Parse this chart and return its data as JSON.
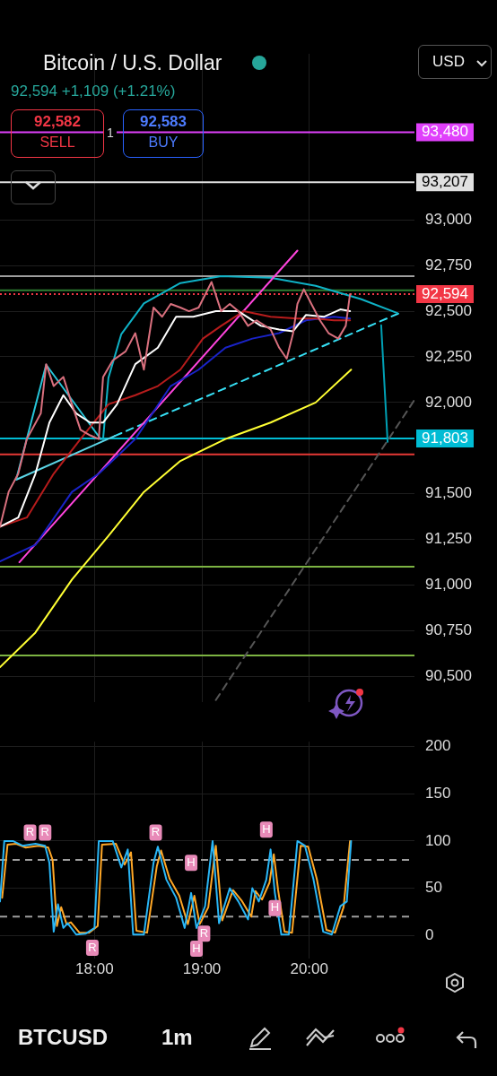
{
  "chart_data": [
    {
      "type": "line",
      "title": "Bitcoin / U.S. Dollar",
      "subtitle": "92,594 +1,109 (+1.21%)",
      "annotations": [
        "92,582",
        "SELL",
        "1",
        "92,583",
        "BUY",
        "USD"
      ],
      "xlim": [
        17.12,
        20.98
      ],
      "xticks": [
        {
          "value": 18,
          "label": null
        },
        {
          "value": 19,
          "label": null
        },
        {
          "value": 20,
          "label": null
        }
      ],
      "ylim": [
        90360,
        93910
      ],
      "yticks": [
        {
          "value": 90500,
          "label": "90,500"
        },
        {
          "value": 90750,
          "label": "90,750"
        },
        {
          "value": 91000,
          "label": "91,000"
        },
        {
          "value": 91250,
          "label": "91,250"
        },
        {
          "value": 91500,
          "label": "91,500"
        },
        {
          "value": 92000,
          "label": "92,000"
        },
        {
          "value": 92250,
          "label": "92,250"
        },
        {
          "value": 92500,
          "label": "92,500"
        },
        {
          "value": 92750,
          "label": "92,750"
        },
        {
          "value": 93000,
          "label": "93,000"
        }
      ],
      "tick_labels": "y",
      "grid": true,
      "marker": "none",
      "line_style": "solid",
      "legend": false,
      "series": [
        {
          "color": "#d9707e",
          "x": [
            17.12,
            17.2,
            17.29,
            17.37,
            17.5,
            17.55,
            17.62,
            17.71,
            17.79,
            17.87,
            17.96,
            18.04,
            18.08,
            18.17,
            18.29,
            18.38,
            18.46,
            18.55,
            18.63,
            18.71,
            18.8,
            18.88,
            18.97,
            19.09,
            19.18,
            19.26,
            19.34,
            19.43,
            19.51,
            19.64,
            19.72,
            19.79,
            19.85,
            19.89,
            19.95,
            20.02,
            20.1,
            20.18,
            20.27,
            20.34,
            20.38
          ],
          "values": [
            91320,
            91510,
            91610,
            91800,
            91940,
            92210,
            92090,
            92140,
            91990,
            91850,
            91820,
            91800,
            92140,
            92230,
            92280,
            92380,
            92180,
            92520,
            92470,
            92540,
            92520,
            92500,
            92520,
            92660,
            92500,
            92540,
            92500,
            92420,
            92450,
            92400,
            92300,
            92240,
            92380,
            92540,
            92620,
            92540,
            92450,
            92380,
            92350,
            92420,
            92594
          ]
        },
        {
          "color": "#ffffff",
          "x": [
            17.12,
            17.29,
            17.45,
            17.58,
            17.71,
            17.83,
            17.96,
            18.08,
            18.21,
            18.38,
            18.59,
            18.76,
            18.92,
            19.13,
            19.34,
            19.55,
            19.72,
            19.85,
            19.97,
            20.14,
            20.29,
            20.38
          ],
          "values": [
            91320,
            91370,
            91610,
            91890,
            92040,
            91940,
            91890,
            91890,
            91990,
            92210,
            92300,
            92470,
            92470,
            92500,
            92500,
            92420,
            92400,
            92390,
            92480,
            92470,
            92510,
            92500
          ]
        },
        {
          "color": "#b71c1c",
          "x": [
            17.12,
            17.37,
            17.62,
            17.87,
            18.13,
            18.38,
            18.59,
            18.8,
            19.01,
            19.18,
            19.39,
            19.64,
            19.89,
            20.06,
            20.23,
            20.38
          ],
          "values": [
            91320,
            91370,
            91610,
            91800,
            91990,
            92040,
            92090,
            92180,
            92350,
            92420,
            92500,
            92470,
            92460,
            92460,
            92450,
            92450
          ]
        },
        {
          "color": "#1a23c8",
          "x": [
            17.12,
            17.45,
            17.79,
            18.04,
            18.38,
            18.71,
            18.97,
            19.22,
            19.47,
            19.72,
            19.97,
            20.23,
            20.38
          ],
          "values": [
            91130,
            91220,
            91510,
            91610,
            91800,
            92090,
            92180,
            92300,
            92350,
            92380,
            92450,
            92470,
            92460
          ]
        },
        {
          "color": "#ffff33",
          "x": [
            17.12,
            17.45,
            17.79,
            18.13,
            18.46,
            18.8,
            19.22,
            19.64,
            20.06,
            20.39
          ],
          "values": [
            90550,
            90740,
            91030,
            91270,
            91510,
            91680,
            91800,
            91890,
            92000,
            92180
          ]
        },
        {
          "color": "#555555",
          "line_style": "dashed",
          "x": [
            19.13,
            20.98
          ],
          "values": [
            90370,
            92014
          ]
        },
        {
          "color": "#ff44dd",
          "x": [
            17.3,
            19.89
          ],
          "values": [
            91125,
            92832
          ]
        },
        {
          "color": "#26c6da",
          "x": [
            17.27,
            17.55,
            18.06
          ],
          "values": [
            91577,
            92207,
            91798
          ]
        },
        {
          "color": "#5ad4e6",
          "x": [
            17.27,
            18.19
          ],
          "values": [
            91577,
            91817
          ]
        },
        {
          "color": "#0fb2c6",
          "x": [
            18.08,
            18.13,
            18.25,
            18.46,
            18.8,
            19.18,
            19.64,
            20.06,
            20.48,
            20.82
          ],
          "values": [
            91798,
            92135,
            92375,
            92543,
            92654,
            92692,
            92683,
            92639,
            92567,
            92490
          ]
        },
        {
          "color": "#36e0f5",
          "line_style": "dashed",
          "x": [
            18.19,
            20.86
          ],
          "values": [
            91817,
            92495
          ]
        },
        {
          "color": "#00a0b4",
          "x": [
            20.67,
            20.73
          ],
          "values": [
            92423,
            91784
          ]
        }
      ],
      "ref_lines": [
        {
          "axis": "y",
          "value": 93480,
          "label": "93,480",
          "color": "#e040fb",
          "line_style": "solid"
        },
        {
          "axis": "y",
          "value": 93207,
          "label": "93,207",
          "color": "#e0e0e0",
          "line_style": "solid"
        },
        {
          "axis": "y",
          "value": 92692,
          "label": null,
          "color": "#9e9e9e",
          "line_style": "solid"
        },
        {
          "axis": "y",
          "value": 92615,
          "label": null,
          "color": "#2e7d32",
          "line_style": "solid"
        },
        {
          "axis": "y",
          "value": 92594,
          "label": "92,594",
          "color": "#f23645",
          "line_style": "dotted"
        },
        {
          "axis": "y",
          "value": 91803,
          "label": "91,803",
          "color": "#00bcd4",
          "line_style": "solid"
        },
        {
          "axis": "y",
          "value": 91716,
          "label": null,
          "color": "#e53935",
          "line_style": "solid"
        },
        {
          "axis": "y",
          "value": 91101,
          "label": null,
          "color": "#7cb342",
          "line_style": "solid"
        },
        {
          "axis": "y",
          "value": 90615,
          "label": null,
          "color": "#7cb342",
          "line_style": "solid"
        }
      ]
    },
    {
      "type": "line",
      "annotations": [
        {
          "text": "R",
          "x": 17.4,
          "y": 109
        },
        {
          "text": "R",
          "x": 17.54,
          "y": 109
        },
        {
          "text": "R",
          "x": 17.98,
          "y": -13
        },
        {
          "text": "R",
          "x": 18.57,
          "y": 109
        },
        {
          "text": "H",
          "x": 18.9,
          "y": 77
        },
        {
          "text": "R",
          "x": 19.02,
          "y": 2
        },
        {
          "text": "H",
          "x": 18.95,
          "y": -14
        },
        {
          "text": "H",
          "x": 19.6,
          "y": 112
        },
        {
          "text": "H",
          "x": 19.68,
          "y": 29
        },
        "BTCUSD",
        "1m"
      ],
      "xlim": [
        17.12,
        20.98
      ],
      "xticks": [
        {
          "value": 18,
          "label": "18:00"
        },
        {
          "value": 19,
          "label": "19:00"
        },
        {
          "value": 20,
          "label": "20:00"
        }
      ],
      "ylim": [
        -24,
        205
      ],
      "yticks": [
        0,
        50,
        100,
        150,
        200
      ],
      "grid": true,
      "marker": "none",
      "line_style": "solid",
      "legend": false,
      "series": [
        {
          "color": "#29b6f6",
          "x": [
            17.12,
            17.16,
            17.24,
            17.33,
            17.45,
            17.54,
            17.58,
            17.62,
            17.66,
            17.71,
            17.75,
            17.83,
            17.92,
            18.0,
            18.04,
            18.17,
            18.25,
            18.31,
            18.36,
            18.46,
            18.55,
            18.59,
            18.67,
            18.76,
            18.84,
            18.9,
            18.95,
            19.03,
            19.1,
            19.16,
            19.26,
            19.34,
            19.43,
            19.47,
            19.53,
            19.6,
            19.64,
            19.68,
            19.74,
            19.81,
            19.89,
            19.96,
            20.04,
            20.13,
            20.21,
            20.29,
            20.35,
            20.39
          ],
          "values": [
            36,
            100,
            100,
            95,
            97,
            95,
            77,
            4,
            33,
            8,
            13,
            1,
            2,
            8,
            100,
            100,
            72,
            91,
            1,
            1,
            77,
            94,
            59,
            40,
            8,
            45,
            8,
            31,
            100,
            13,
            50,
            36,
            17,
            50,
            36,
            59,
            91,
            45,
            1,
            1,
            100,
            95,
            59,
            4,
            1,
            31,
            36,
            100
          ]
        },
        {
          "color": "#ffa726",
          "x": [
            17.14,
            17.19,
            17.27,
            17.36,
            17.48,
            17.57,
            17.61,
            17.65,
            17.69,
            17.74,
            17.78,
            17.86,
            17.95,
            18.03,
            18.07,
            18.2,
            18.28,
            18.34,
            18.39,
            18.49,
            18.58,
            18.62,
            18.7,
            18.79,
            18.87,
            18.93,
            18.98,
            19.06,
            19.13,
            19.19,
            19.29,
            19.37,
            19.46,
            19.5,
            19.56,
            19.63,
            19.67,
            19.71,
            19.77,
            19.84,
            19.92,
            19.99,
            20.07,
            20.16,
            20.24,
            20.32,
            20.38
          ],
          "values": [
            40,
            96,
            97,
            93,
            95,
            93,
            80,
            10,
            30,
            12,
            14,
            3,
            3,
            10,
            96,
            97,
            75,
            88,
            5,
            3,
            73,
            90,
            60,
            42,
            12,
            42,
            12,
            30,
            95,
            16,
            48,
            37,
            20,
            47,
            38,
            56,
            86,
            48,
            4,
            3,
            95,
            94,
            60,
            6,
            3,
            30,
            100
          ]
        }
      ],
      "ref_lines": [
        {
          "axis": "y",
          "value": 80,
          "label": null,
          "color": "#9e9e9e",
          "line_style": "dashed"
        },
        {
          "axis": "y",
          "value": 20,
          "label": null,
          "color": "#9e9e9e",
          "line_style": "dashed"
        }
      ]
    }
  ]
}
